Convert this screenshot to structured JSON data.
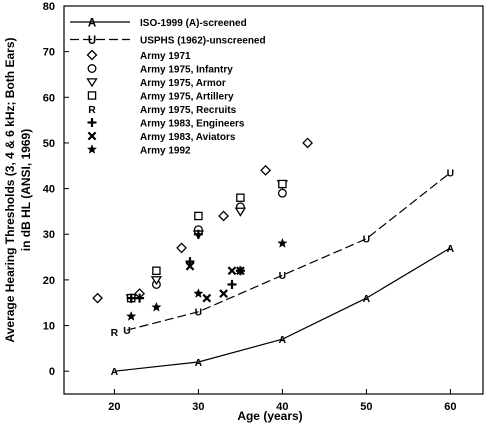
{
  "chart_data": {
    "type": "scatter",
    "title": "",
    "xlabel": "Age (years)",
    "ylabel": "Average Hearing Thresholds (3, 4 & 6 kHz; Both Ears)",
    "ylabel2": "in dB HL (ANSI, 1969)",
    "xlim": [
      14,
      64
    ],
    "ylim": [
      -5,
      80
    ],
    "xticks": [
      20,
      30,
      40,
      50,
      60
    ],
    "yticks": [
      0,
      10,
      20,
      30,
      40,
      50,
      60,
      70,
      80
    ],
    "grid": false,
    "legend_position": "top-left",
    "series": [
      {
        "name": "ISO-1999 (A)-screened",
        "marker": "A",
        "line": "solid",
        "x": [
          20,
          30,
          40,
          50,
          60
        ],
        "y": [
          0,
          2,
          7,
          16,
          27
        ]
      },
      {
        "name": "USPHS (1962)-unscreened",
        "marker": "U",
        "line": "dashed",
        "x": [
          21.5,
          30,
          40,
          50,
          60
        ],
        "y": [
          9,
          13,
          21,
          29,
          43.5
        ]
      },
      {
        "name": "Army 1971",
        "marker": "diamond",
        "x": [
          18,
          23,
          28,
          33,
          38,
          43
        ],
        "y": [
          16,
          17,
          27,
          34,
          44,
          50
        ]
      },
      {
        "name": "Army 1975, Infantry",
        "marker": "circle",
        "x": [
          22,
          25,
          30,
          35,
          40
        ],
        "y": [
          16,
          19,
          31,
          36,
          39
        ]
      },
      {
        "name": "Army 1975, Armor",
        "marker": "triangle-down",
        "x": [
          22,
          25,
          30,
          35,
          40
        ],
        "y": [
          16,
          20,
          30,
          35,
          41
        ]
      },
      {
        "name": "Army 1975, Artillery",
        "marker": "square",
        "x": [
          22,
          25,
          30,
          35,
          40
        ],
        "y": [
          16,
          22,
          34,
          38,
          41
        ]
      },
      {
        "name": "Army 1975, Recruits",
        "marker": "R",
        "x": [
          20
        ],
        "y": [
          8.5
        ]
      },
      {
        "name": "Army 1983, Engineers",
        "marker": "plus",
        "x": [
          22,
          23,
          29,
          30,
          34,
          35
        ],
        "y": [
          16,
          16,
          24,
          30,
          19,
          22
        ]
      },
      {
        "name": "Army 1983, Aviators",
        "marker": "x",
        "x": [
          29,
          31,
          33,
          34,
          35
        ],
        "y": [
          23,
          16,
          17,
          22,
          22
        ]
      },
      {
        "name": "Army 1992",
        "marker": "star",
        "x": [
          22,
          25,
          30,
          40
        ],
        "y": [
          12,
          14,
          17,
          28
        ]
      }
    ]
  }
}
